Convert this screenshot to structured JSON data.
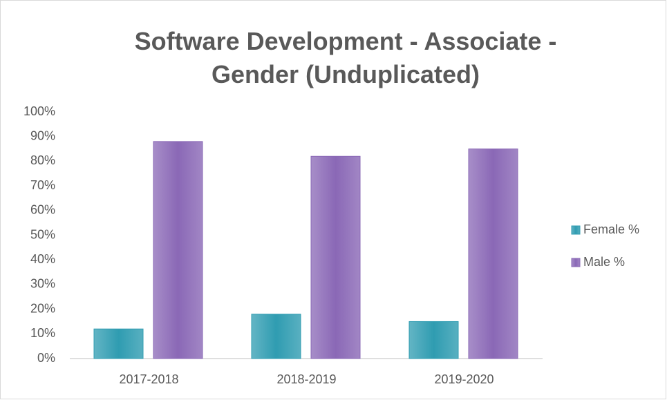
{
  "chart_data": {
    "type": "bar",
    "title": "Software Development - Associate - Gender (Unduplicated)",
    "categories": [
      "2017-2018",
      "2018-2019",
      "2019-2020"
    ],
    "series": [
      {
        "name": "Female %",
        "color": "#2f9cb1",
        "values": [
          12,
          18,
          15
        ]
      },
      {
        "name": "Male %",
        "color": "#8a68b6",
        "values": [
          88,
          82,
          85
        ]
      }
    ],
    "ylim": [
      0,
      100
    ],
    "yticks": [
      {
        "value": 0,
        "label": "0%"
      },
      {
        "value": 10,
        "label": "10%"
      },
      {
        "value": 20,
        "label": "20%"
      },
      {
        "value": 30,
        "label": "30%"
      },
      {
        "value": 40,
        "label": "40%"
      },
      {
        "value": 50,
        "label": "50%"
      },
      {
        "value": 60,
        "label": "60%"
      },
      {
        "value": 70,
        "label": "70%"
      },
      {
        "value": 80,
        "label": "80%"
      },
      {
        "value": 90,
        "label": "90%"
      },
      {
        "value": 100,
        "label": "100%"
      }
    ],
    "grid": false,
    "legend": "right"
  }
}
